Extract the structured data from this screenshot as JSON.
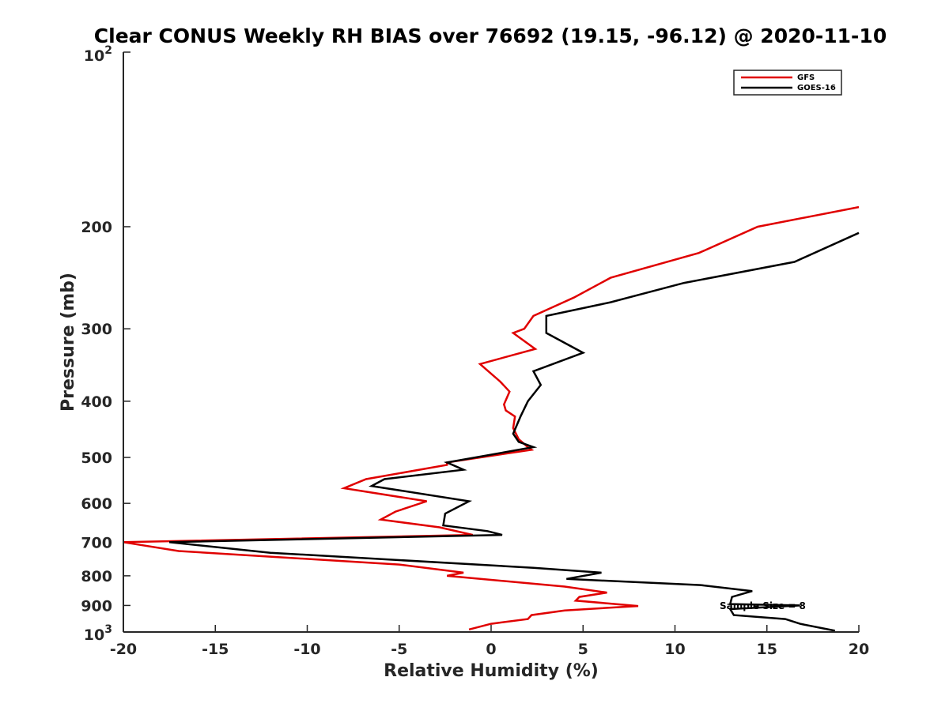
{
  "chart_data": {
    "type": "line",
    "title": "Clear CONUS Weekly RH BIAS over 76692 (19.15, -96.12) @ 2020-11-10",
    "xlabel": "Relative Humidity (%)",
    "ylabel": "Pressure (mb)",
    "xlim": [
      -20,
      20
    ],
    "ylim": [
      100,
      1000
    ],
    "yscale": "log",
    "y_reversed": true,
    "x_ticks": [
      -20,
      -15,
      -10,
      -5,
      0,
      5,
      10,
      15,
      20
    ],
    "x_tick_labels": [
      "-20",
      "-15",
      "-10",
      "-5",
      "0",
      "5",
      "10",
      "15",
      "20"
    ],
    "y_ticks": [
      200,
      300,
      400,
      500,
      600,
      700,
      800,
      900
    ],
    "y_tick_labels": [
      "200",
      "300",
      "400",
      "500",
      "600",
      "700",
      "800",
      "900"
    ],
    "y_top_label": {
      "base": "10",
      "exp": "2"
    },
    "y_bottom_label": {
      "base": "10",
      "exp": "3"
    },
    "legend_position": "top-right",
    "annotation": {
      "text": "Sample Size = 8",
      "x": 14.5,
      "y": 903
    },
    "series": [
      {
        "name": "GFS",
        "color": "#e00000",
        "x": [
          20,
          14.5,
          11.3,
          6.5,
          4.5,
          2.3,
          1.8,
          1.2,
          2.4,
          -0.6,
          0.5,
          1.0,
          0.7,
          0.8,
          1.3,
          1.2,
          1.5,
          2.0,
          2.2,
          -2.4,
          -2.4,
          -6.8,
          -8.0,
          -3.5,
          -5.2,
          -6.0,
          -2.8,
          -1.0,
          -20.0,
          -17.0,
          -5.0,
          -1.5,
          -2.4,
          4.0,
          6.3,
          4.8,
          4.6,
          8.0,
          4.0,
          2.2,
          2.0,
          0.0,
          -1.2
        ],
        "y": [
          185,
          200,
          222,
          245,
          265,
          285,
          300,
          305,
          325,
          345,
          370,
          385,
          405,
          415,
          425,
          445,
          465,
          480,
          485,
          510,
          515,
          545,
          565,
          595,
          620,
          640,
          660,
          680,
          700,
          725,
          765,
          790,
          800,
          835,
          855,
          870,
          883,
          902,
          918,
          935,
          950,
          968,
          990
        ]
      },
      {
        "name": "GOES-16",
        "color": "#000000",
        "x": [
          20,
          16.5,
          10.5,
          6.5,
          3.0,
          3.0,
          5.0,
          2.3,
          2.7,
          2.0,
          1.6,
          1.2,
          1.5,
          2.3,
          -2.4,
          -1.5,
          -5.8,
          -6.5,
          -1.2,
          -2.5,
          -2.6,
          -0.2,
          0.6,
          -17.5,
          -12.0,
          2.3,
          6.0,
          4.1,
          11.4,
          14.2,
          13.1,
          13.0,
          16.8,
          13.0,
          13.2,
          16.0,
          16.8,
          18.7
        ],
        "y": [
          205,
          230,
          250,
          270,
          285,
          305,
          330,
          355,
          375,
          400,
          425,
          455,
          470,
          480,
          510,
          525,
          545,
          560,
          595,
          625,
          655,
          670,
          680,
          700,
          730,
          775,
          790,
          810,
          830,
          850,
          870,
          895,
          900,
          913,
          935,
          950,
          968,
          995
        ]
      }
    ]
  }
}
